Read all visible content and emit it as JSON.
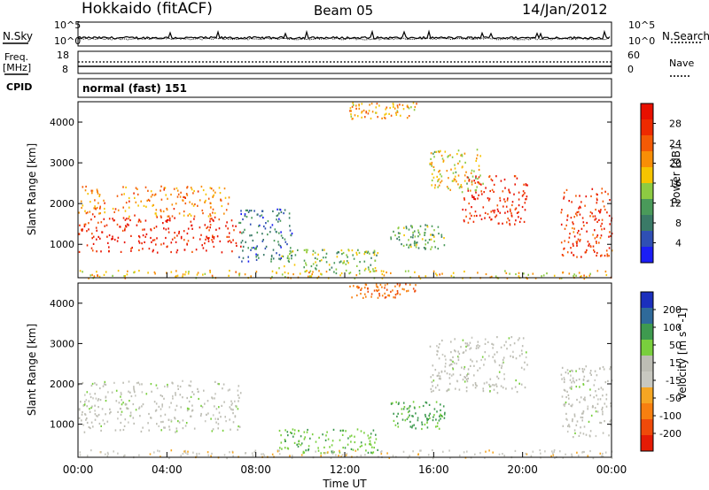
{
  "header": {
    "station": "Hokkaido (fitACF)",
    "beam": "Beam 05",
    "date": "14/Jan/2012"
  },
  "noise_panel": {
    "left_label": "N.Sky",
    "right_label": "N.Search",
    "scale_top": "10^5",
    "scale_bottom": "10^0"
  },
  "freq_panel": {
    "left_label_1": "Freq.",
    "left_label_2": "[MHz]",
    "left_top": "18",
    "left_bottom": "8",
    "right_top": "60",
    "right_bottom": "0",
    "right_label": "Nave"
  },
  "cpid_panel": {
    "label": "CPID",
    "value": "normal (fast) 151"
  },
  "chart_data": [
    {
      "type": "heatmap",
      "quantity": "Power",
      "ylabel": "Slant Range [km]",
      "xlim_hours": [
        0,
        24
      ],
      "ylim": [
        180,
        4500
      ],
      "yticks": [
        1000,
        2000,
        3000,
        4000
      ],
      "colorbar_label": "Power [dB]",
      "colorbar_ticks": [
        "4",
        "8",
        "12",
        "16",
        "20",
        "24",
        "28"
      ],
      "colorbar_range": [
        0,
        32
      ],
      "colorbar_colors": [
        "#1b1ef5",
        "#2f4fb4",
        "#3a7a67",
        "#4a9a5a",
        "#8dcb42",
        "#f6c400",
        "#f88e06",
        "#f45a05",
        "#ee2a00",
        "#e81000"
      ],
      "regions": [
        {
          "t0": 0.0,
          "t1": 7.3,
          "r0": 820,
          "r1": 1700,
          "db": 29
        },
        {
          "t0": 0.0,
          "t1": 6.8,
          "r0": 1700,
          "r1": 2450,
          "db": 22
        },
        {
          "t0": 7.2,
          "t1": 9.6,
          "r0": 600,
          "r1": 1900,
          "db": 7
        },
        {
          "t0": 9.0,
          "t1": 13.5,
          "r0": 300,
          "r1": 900,
          "db": 14
        },
        {
          "t0": 14.0,
          "t1": 16.5,
          "r0": 900,
          "r1": 1500,
          "db": 12
        },
        {
          "t0": 15.8,
          "t1": 18.2,
          "r0": 2300,
          "r1": 3350,
          "db": 17
        },
        {
          "t0": 17.2,
          "t1": 20.2,
          "r0": 1500,
          "r1": 2700,
          "db": 28
        },
        {
          "t0": 21.7,
          "t1": 24.0,
          "r0": 700,
          "r1": 2400,
          "db": 27
        },
        {
          "t0": 12.2,
          "t1": 15.2,
          "r0": 4100,
          "r1": 4500,
          "db": 20
        },
        {
          "t0": 0.0,
          "t1": 24.0,
          "r0": 180,
          "r1": 380,
          "db": 18
        }
      ]
    },
    {
      "type": "heatmap",
      "quantity": "Velocity",
      "xlabel": "Time UT",
      "ylabel": "Slant Range [km]",
      "xticks": [
        "00:00",
        "04:00",
        "08:00",
        "12:00",
        "16:00",
        "20:00",
        "00:00"
      ],
      "xlim_hours": [
        0,
        24
      ],
      "ylim": [
        180,
        4500
      ],
      "yticks": [
        1000,
        2000,
        3000,
        4000
      ],
      "colorbar_label": "Velocity [m s^-1]",
      "colorbar_ticks": [
        "200",
        "100",
        "50",
        "15",
        "-15",
        "-50",
        "-100",
        "-200"
      ],
      "colorbar_colors": [
        "#1b2fbd",
        "#2f6a9a",
        "#3e9a4f",
        "#79cf3d",
        "#bdbdb4",
        "#c8c8c0",
        "#f5a623",
        "#f77f10",
        "#ef4a0a",
        "#e51b05"
      ],
      "regions": [
        {
          "t0": 0.0,
          "t1": 7.3,
          "r0": 820,
          "r1": 2100,
          "v": 0
        },
        {
          "t0": 9.0,
          "t1": 13.5,
          "r0": 300,
          "r1": 900,
          "v": 40
        },
        {
          "t0": 14.0,
          "t1": 16.5,
          "r0": 900,
          "r1": 1600,
          "v": 60
        },
        {
          "t0": 15.8,
          "t1": 20.2,
          "r0": 1800,
          "r1": 3200,
          "v": 0
        },
        {
          "t0": 21.7,
          "t1": 24.0,
          "r0": 700,
          "r1": 2500,
          "v": 0
        },
        {
          "t0": 12.2,
          "t1": 15.2,
          "r0": 4150,
          "r1": 4500,
          "v": -200
        },
        {
          "t0": 0.0,
          "t1": 24.0,
          "r0": 180,
          "r1": 380,
          "v": -40
        }
      ]
    }
  ]
}
